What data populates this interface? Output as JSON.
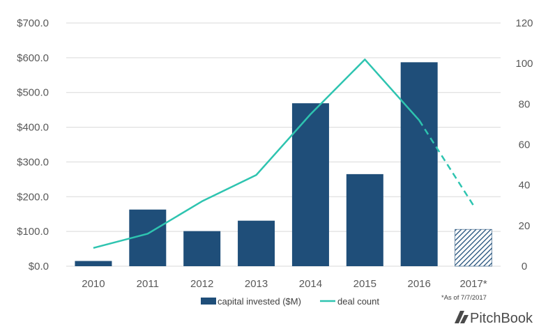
{
  "chart_data": {
    "type": "bar",
    "categories": [
      "2010",
      "2011",
      "2012",
      "2013",
      "2014",
      "2015",
      "2016",
      "2017*"
    ],
    "series": [
      {
        "name": "capital invested ($M)",
        "type": "bar",
        "axis": "left",
        "values": [
          15,
          163,
          101,
          131,
          469,
          265,
          587,
          106
        ],
        "color": "#1f4e79",
        "hatched_last": true
      },
      {
        "name": "deal count",
        "type": "line",
        "axis": "right",
        "values": [
          9,
          16,
          32,
          45,
          75,
          102,
          72,
          30
        ],
        "color": "#2ec4b0",
        "dashed_last_segment": true
      }
    ],
    "left_axis": {
      "ylim": [
        0,
        700
      ],
      "ticks": [
        "$0.0",
        "$100.0",
        "$200.0",
        "$300.0",
        "$400.0",
        "$500.0",
        "$600.0",
        "$700.0"
      ]
    },
    "right_axis": {
      "ylim": [
        0,
        120
      ],
      "ticks": [
        "0",
        "20",
        "40",
        "60",
        "80",
        "100",
        "120"
      ]
    },
    "grid": true,
    "legend_placement": "bottom-center",
    "annotation": "*As of 7/7/2017"
  },
  "brand": {
    "name": "PitchBook"
  }
}
